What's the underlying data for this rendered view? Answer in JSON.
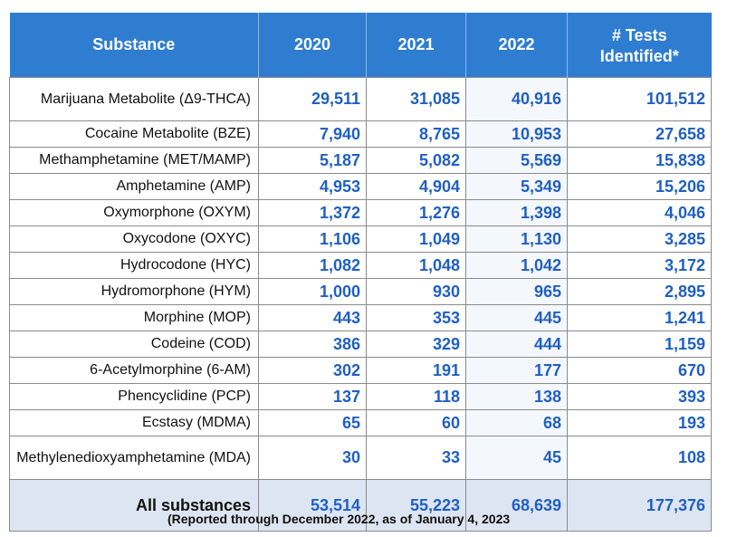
{
  "headers": {
    "substance": "Substance",
    "y2020": "2020",
    "y2021": "2021",
    "y2022": "2022",
    "tests_line1": "# Tests",
    "tests_line2": "Identified*"
  },
  "rows": [
    {
      "name": "Marijuana Metabolite (Δ9-THCA)",
      "v2020": "29,511",
      "v2021": "31,085",
      "v2022": "40,916",
      "tests": "101,512"
    },
    {
      "name": "Cocaine Metabolite (BZE)",
      "v2020": "7,940",
      "v2021": "8,765",
      "v2022": "10,953",
      "tests": "27,658"
    },
    {
      "name": "Methamphetamine (MET/MAMP)",
      "v2020": "5,187",
      "v2021": "5,082",
      "v2022": "5,569",
      "tests": "15,838"
    },
    {
      "name": "Amphetamine (AMP)",
      "v2020": "4,953",
      "v2021": "4,904",
      "v2022": "5,349",
      "tests": "15,206"
    },
    {
      "name": "Oxymorphone (OXYM)",
      "v2020": "1,372",
      "v2021": "1,276",
      "v2022": "1,398",
      "tests": "4,046"
    },
    {
      "name": "Oxycodone (OXYC)",
      "v2020": "1,106",
      "v2021": "1,049",
      "v2022": "1,130",
      "tests": "3,285"
    },
    {
      "name": "Hydrocodone (HYC)",
      "v2020": "1,082",
      "v2021": "1,048",
      "v2022": "1,042",
      "tests": "3,172"
    },
    {
      "name": "Hydromorphone (HYM)",
      "v2020": "1,000",
      "v2021": "930",
      "v2022": "965",
      "tests": "2,895"
    },
    {
      "name": "Morphine (MOP)",
      "v2020": "443",
      "v2021": "353",
      "v2022": "445",
      "tests": "1,241"
    },
    {
      "name": "Codeine (COD)",
      "v2020": "386",
      "v2021": "329",
      "v2022": "444",
      "tests": "1,159"
    },
    {
      "name": "6-Acetylmorphine (6-AM)",
      "v2020": "302",
      "v2021": "191",
      "v2022": "177",
      "tests": "670"
    },
    {
      "name": "Phencyclidine (PCP)",
      "v2020": "137",
      "v2021": "118",
      "v2022": "138",
      "tests": "393"
    },
    {
      "name": "Ecstasy (MDMA)",
      "v2020": "65",
      "v2021": "60",
      "v2022": "68",
      "tests": "193"
    },
    {
      "name": "Methylenedioxyamphetamine (MDA)",
      "v2020": "30",
      "v2021": "33",
      "v2022": "45",
      "tests": "108"
    }
  ],
  "total": {
    "name": "All substances",
    "v2020": "53,514",
    "v2021": "55,223",
    "v2022": "68,639",
    "tests": "177,376"
  },
  "footnote": "(Reported through December 2022, as of January 4, 2023",
  "colors": {
    "header_bg": "#2f7dd1",
    "value_text": "#1f5fc4",
    "total_row_bg": "#dde5f2"
  }
}
